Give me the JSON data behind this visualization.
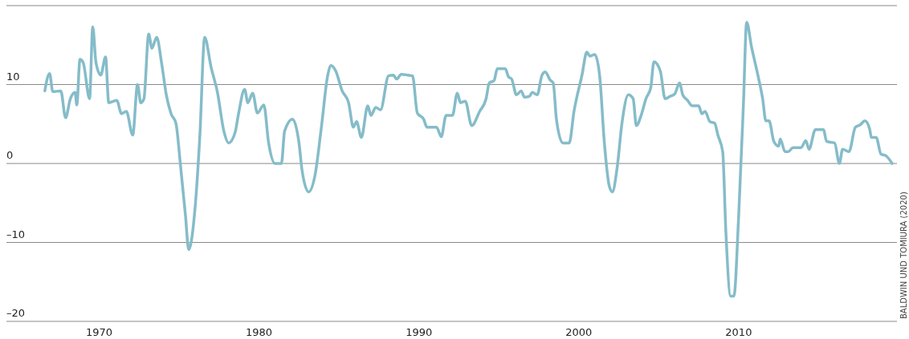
{
  "chart_data": {
    "type": "line",
    "x": [
      1966.6,
      1966.9,
      1967.1,
      1967.6,
      1967.9,
      1968.2,
      1968.5,
      1968.6,
      1968.8,
      1969.0,
      1969.4,
      1969.6,
      1969.8,
      1970.1,
      1970.4,
      1970.6,
      1971.1,
      1971.4,
      1971.7,
      1972.1,
      1972.4,
      1972.6,
      1972.8,
      1973.1,
      1973.3,
      1973.6,
      1973.9,
      1974.2,
      1974.5,
      1974.8,
      1975.1,
      1975.4,
      1975.6,
      1976.0,
      1976.3,
      1976.6,
      1977.0,
      1977.4,
      1977.8,
      1978.1,
      1978.5,
      1978.7,
      1979.1,
      1979.3,
      1979.6,
      1979.9,
      1980.3,
      1980.6,
      1981.0,
      1981.4,
      1981.6,
      1982.1,
      1982.5,
      1982.7,
      1983.1,
      1983.5,
      1983.9,
      1984.3,
      1984.5,
      1984.8,
      1985.2,
      1985.6,
      1985.9,
      1986.1,
      1986.4,
      1986.8,
      1987.0,
      1987.3,
      1987.6,
      1988.1,
      1988.4,
      1988.6,
      1988.9,
      1989.3,
      1989.6,
      1989.9,
      1990.3,
      1990.5,
      1991.1,
      1991.4,
      1991.7,
      1992.1,
      1992.4,
      1992.6,
      1992.9,
      1993.3,
      1993.8,
      1994.2,
      1994.4,
      1994.7,
      1994.9,
      1995.4,
      1995.6,
      1995.8,
      1996.1,
      1996.4,
      1996.6,
      1996.9,
      1997.1,
      1997.4,
      1997.7,
      1997.9,
      1998.2,
      1998.4,
      1998.6,
      1999.0,
      1999.4,
      1999.7,
      2000.2,
      2000.5,
      2000.7,
      2001.0,
      2001.3,
      2001.6,
      2001.9,
      2002.1,
      2002.4,
      2002.7,
      2003.1,
      2003.4,
      2003.6,
      2003.9,
      2004.2,
      2004.5,
      2004.7,
      2005.1,
      2005.4,
      2005.7,
      2006.0,
      2006.3,
      2006.5,
      2006.8,
      2007.1,
      2007.5,
      2007.7,
      2007.9,
      2008.2,
      2008.5,
      2008.7,
      2009.0,
      2009.2,
      2009.5,
      2009.7,
      2010.0,
      2010.3,
      2010.5,
      2010.8,
      2011.2,
      2011.5,
      2011.7,
      2011.9,
      2012.2,
      2012.5,
      2012.6,
      2012.9,
      2013.1,
      2013.4,
      2013.9,
      2014.2,
      2014.4,
      2014.8,
      2015.3,
      2015.5,
      2016.0,
      2016.3,
      2016.5,
      2016.9,
      2017.3,
      2017.6,
      2017.9,
      2018.2,
      2018.3,
      2018.6,
      2018.9,
      2019.2,
      2019.6
    ],
    "series": [
      {
        "color": "#85bcc9",
        "values": [
          9.2,
          11.4,
          9.1,
          9.2,
          5.8,
          8.2,
          9.0,
          7.4,
          13.2,
          12.8,
          8.2,
          17.3,
          12.8,
          11.2,
          13.5,
          7.7,
          8.0,
          6.3,
          6.6,
          3.6,
          10.0,
          7.7,
          8.2,
          16.4,
          14.6,
          16.0,
          12.8,
          8.7,
          6.3,
          5.1,
          -0.5,
          -6.6,
          -10.9,
          -5.6,
          3.6,
          16.0,
          12.2,
          9.0,
          4.1,
          2.6,
          3.9,
          6.1,
          9.4,
          7.7,
          8.9,
          6.4,
          7.4,
          2.6,
          0,
          0,
          4.1,
          5.6,
          2.6,
          -1.0,
          -3.6,
          -1.5,
          4.6,
          11.2,
          12.4,
          11.7,
          9.2,
          7.7,
          4.6,
          5.3,
          3.3,
          7.3,
          6.1,
          7.1,
          6.8,
          11.1,
          11.2,
          10.7,
          11.3,
          11.2,
          11.1,
          6.4,
          5.6,
          4.6,
          4.6,
          3.4,
          6.1,
          6.1,
          8.9,
          7.7,
          7.9,
          4.8,
          6.6,
          8.2,
          10.2,
          10.5,
          12.0,
          12.0,
          11.0,
          10.7,
          8.7,
          9.2,
          8.4,
          8.5,
          9.0,
          8.7,
          11.2,
          11.6,
          10.6,
          10.2,
          5.6,
          2.6,
          2.6,
          6.6,
          11.2,
          14.1,
          13.6,
          13.8,
          11.2,
          2.6,
          -2.8,
          -3.6,
          -0.5,
          5.1,
          8.7,
          8.2,
          4.8,
          6.1,
          8.2,
          9.6,
          12.9,
          11.7,
          8.2,
          8.5,
          8.8,
          10.2,
          8.7,
          8.0,
          7.3,
          7.3,
          6.3,
          6.6,
          5.3,
          5.1,
          3.6,
          1.5,
          -8.7,
          -16.8,
          -16.8,
          -6.6,
          7.7,
          17.9,
          14.8,
          11.2,
          8.2,
          5.4,
          5.4,
          2.8,
          2.2,
          3.1,
          1.5,
          1.5,
          2.0,
          2.0,
          2.9,
          1.8,
          4.3,
          4.3,
          2.8,
          2.6,
          0,
          1.8,
          1.5,
          4.6,
          4.9,
          5.4,
          4.3,
          3.3,
          3.3,
          1.2,
          1.0,
          0
        ]
      }
    ],
    "xlim": [
      1964.2,
      2019.9
    ],
    "xticks": [
      1970,
      1980,
      1990,
      2000,
      2010
    ],
    "ylim": [
      -20,
      20
    ],
    "yticks": [
      {
        "value": -20,
        "label": "–20"
      },
      {
        "value": -10,
        "label": "–10"
      },
      0,
      10,
      {
        "value": 20,
        "label": null
      }
    ],
    "grid": "y",
    "annotations": [
      "BALDWIN UND TOMIURA (2020)"
    ]
  }
}
